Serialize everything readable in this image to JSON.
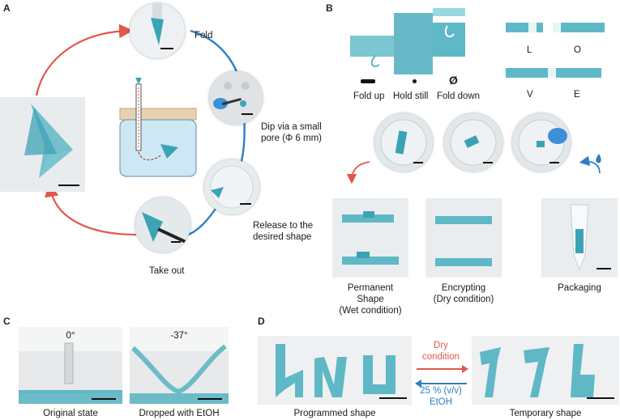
{
  "panels": {
    "a": {
      "letter": "A",
      "fold": "Fold",
      "dip_line1": "Dip via a small",
      "dip_line2": "pore (Φ 6 mm)",
      "release_line1": "Release to the",
      "release_line2": "desired shape",
      "take_out": "Take out"
    },
    "b": {
      "letter": "B",
      "legend_fold_up": "Fold up",
      "legend_hold_still": "Hold still",
      "legend_fold_down": "Fold down",
      "legend_fold_down_symbol": "Ø",
      "letter_L": "L",
      "letter_O": "O",
      "letter_V": "V",
      "letter_E": "E",
      "caption_permanent_1": "Permanent",
      "caption_permanent_2": "Shape",
      "caption_permanent_3": "(Wet condition)",
      "caption_encrypting_1": "Encrypting",
      "caption_encrypting_2": "(Dry condition)",
      "caption_packaging": "Packaging"
    },
    "c": {
      "letter": "C",
      "angle_left": "0°",
      "angle_right": "-37°",
      "caption_left": "Original state",
      "caption_right": "Dropped with EtOH"
    },
    "d": {
      "letter": "D",
      "dry_1": "Dry",
      "dry_2": "condition",
      "etoh_1": "25 % (v/v)",
      "etoh_2": "EtOH",
      "caption_left": "Programmed shape",
      "caption_right": "Temporary shape"
    }
  },
  "colors": {
    "teal": "#5fb8c6",
    "arrow_red": "#e2574c",
    "arrow_blue": "#2e7fc3",
    "water": "#cde7f5",
    "lid": "#e8d1b0"
  }
}
